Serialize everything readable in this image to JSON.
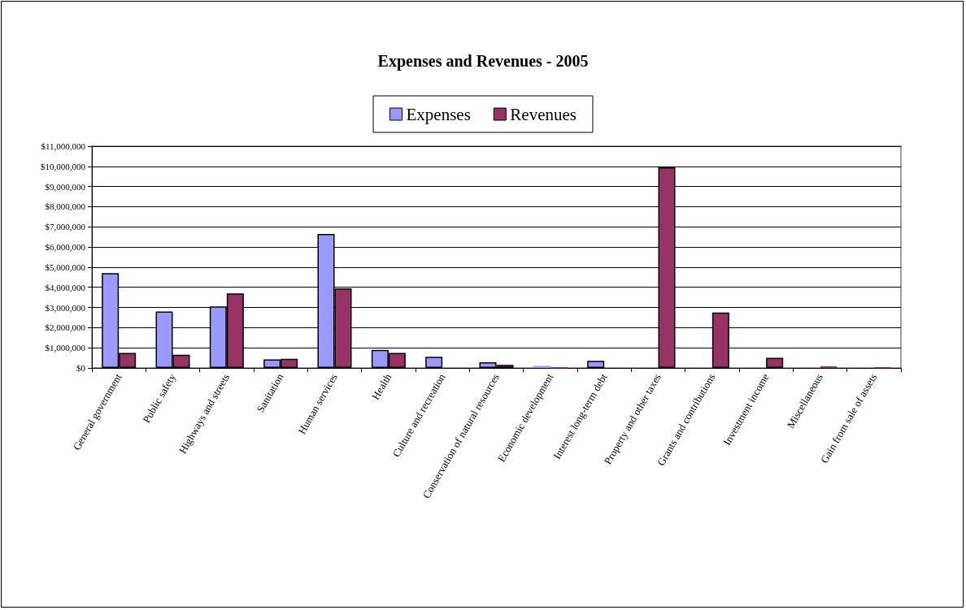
{
  "chart_data": {
    "type": "bar",
    "title": "Expenses and Revenues - 2005",
    "categories": [
      "General government",
      "Public safety",
      "Highways and streets",
      "Sanitation",
      "Human services",
      "Health",
      "Culture and recreation",
      "Conservation of natural resources",
      "Economic development",
      "Interest long-term debt",
      "Property and other taxes",
      "Grants and contributions",
      "Investment income",
      "Miscellaneous",
      "Gain from sale of assets"
    ],
    "series": [
      {
        "name": "Expenses",
        "color": "#9999ff",
        "values": [
          4700000,
          2800000,
          3050000,
          420000,
          6650000,
          900000,
          550000,
          280000,
          100000,
          350000,
          0,
          0,
          0,
          0,
          0
        ]
      },
      {
        "name": "Revenues",
        "color": "#993366",
        "values": [
          750000,
          650000,
          3700000,
          450000,
          3950000,
          750000,
          0,
          150000,
          20000,
          0,
          9950000,
          2750000,
          500000,
          80000,
          30000
        ]
      }
    ],
    "ylim": [
      0,
      11000000
    ],
    "yticks": [
      {
        "value": 0,
        "label": "$0"
      },
      {
        "value": 1000000,
        "label": "$1,000,000"
      },
      {
        "value": 2000000,
        "label": "$2,000,000"
      },
      {
        "value": 3000000,
        "label": "$3,000,000"
      },
      {
        "value": 4000000,
        "label": "$4,000,000"
      },
      {
        "value": 5000000,
        "label": "$5,000,000"
      },
      {
        "value": 6000000,
        "label": "$6,000,000"
      },
      {
        "value": 7000000,
        "label": "$7,000,000"
      },
      {
        "value": 8000000,
        "label": "$8,000,000"
      },
      {
        "value": 9000000,
        "label": "$9,000,000"
      },
      {
        "value": 10000000,
        "label": "$10,000,000"
      },
      {
        "value": 11000000,
        "label": "$11,000,000"
      }
    ],
    "grid": "y",
    "legend": "top"
  }
}
